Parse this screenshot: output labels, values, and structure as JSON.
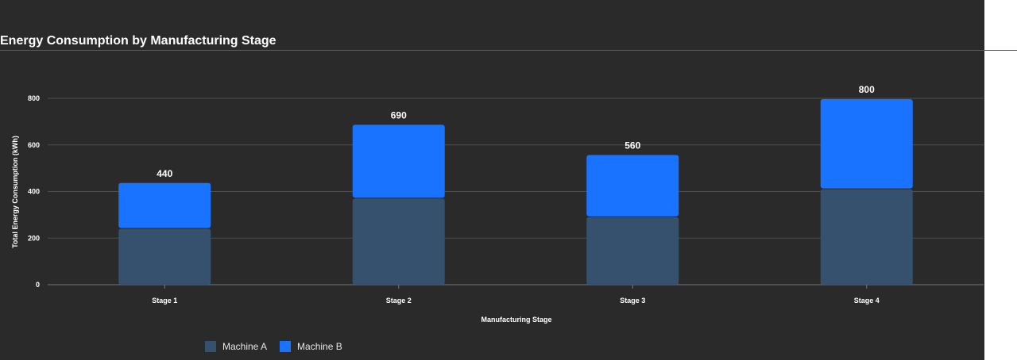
{
  "title": "Energy Consumption by Manufacturing Stage",
  "colors": {
    "background": "#2a2a2a",
    "machine_a": "#36516d",
    "machine_b": "#1a73ff",
    "grid": "#4d4d4d",
    "text": "#ffffff"
  },
  "chart_data": {
    "type": "bar",
    "stacked": true,
    "categories": [
      "Stage 1",
      "Stage 2",
      "Stage 3",
      "Stage 4"
    ],
    "series": [
      {
        "name": "Machine A",
        "values": [
          240,
          370,
          290,
          410
        ]
      },
      {
        "name": "Machine B",
        "values": [
          200,
          320,
          270,
          390
        ]
      }
    ],
    "totals": [
      440,
      690,
      560,
      800
    ],
    "xlabel": "Manufacturing Stage",
    "ylabel": "Total Energy Consumption (kWh)",
    "ylim": [
      0,
      800
    ],
    "yticks": [
      0,
      200,
      400,
      600,
      800
    ],
    "grid": true,
    "legend_position": "bottom-left"
  }
}
